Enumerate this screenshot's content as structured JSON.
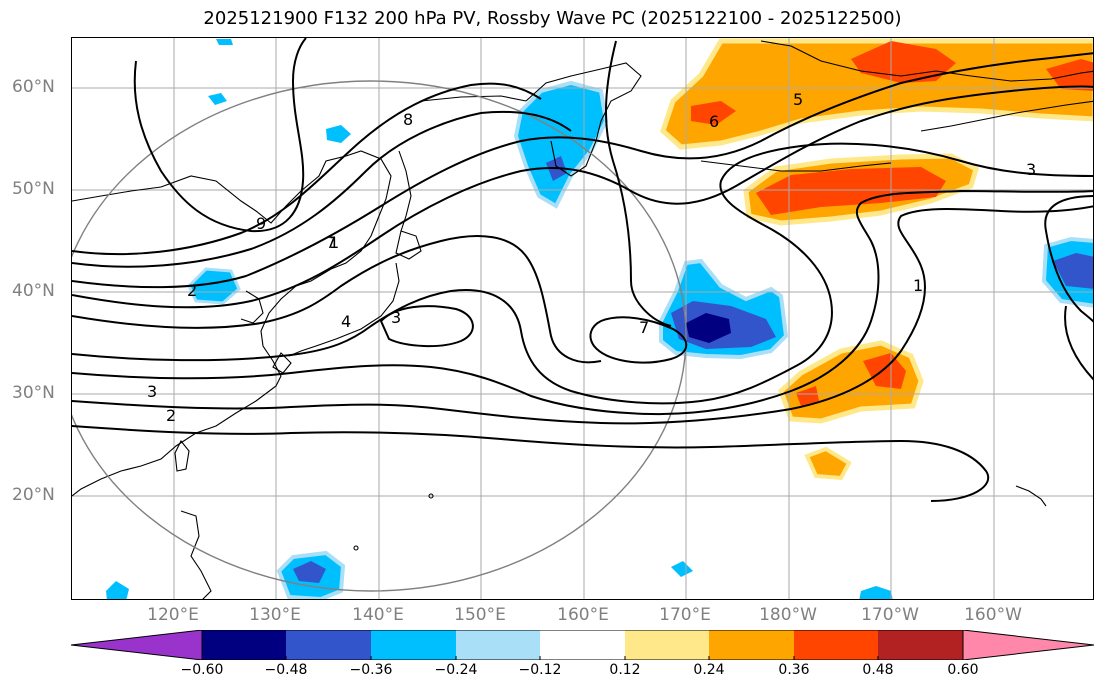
{
  "title": "2025121900 F132 200 hPa PV, Rossby Wave PC (2025122100 - 2025122500)",
  "lat_labels": [
    "60°N",
    "50°N",
    "40°N",
    "30°N",
    "20°N"
  ],
  "lon_labels": [
    "120°E",
    "130°E",
    "140°E",
    "150°E",
    "160°E",
    "170°E",
    "180°W",
    "170°W",
    "160°W"
  ],
  "contour_labels": [
    "9",
    "8",
    "7",
    "6",
    "5",
    "4",
    "3",
    "3",
    "2",
    "1",
    "1",
    "7",
    "2",
    "3"
  ],
  "colorbar": {
    "ticks": [
      "−0.60",
      "−0.48",
      "−0.36",
      "−0.24",
      "−0.12",
      "0.12",
      "0.24",
      "0.36",
      "0.48",
      "0.60"
    ],
    "colors": [
      "#9933cc",
      "#000080",
      "#3355cc",
      "#00bfff",
      "#aadff8",
      "#ffffff",
      "#ffe88a",
      "#ffa500",
      "#ff4500",
      "#b22222",
      "#ff88aa"
    ]
  }
}
